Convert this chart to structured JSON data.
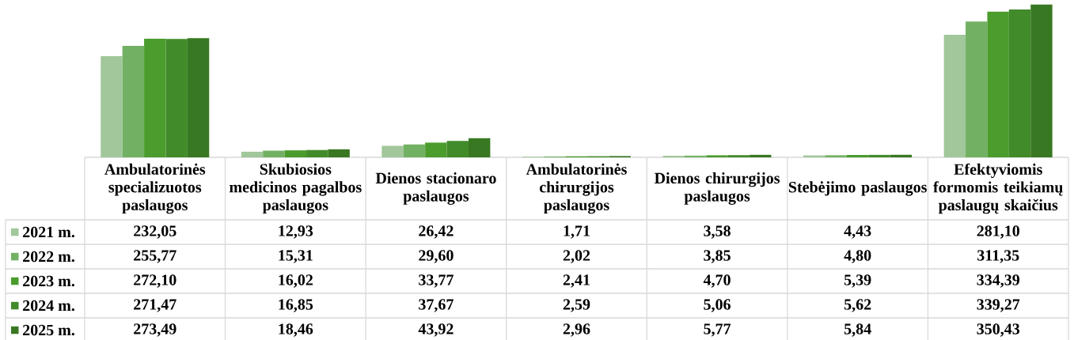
{
  "chart_data": {
    "type": "bar",
    "categories": [
      "Ambulatorinės specializuotos paslaugos",
      "Skubiosios medicinos pagalbos paslaugos",
      "Dienos stacionaro paslaugos",
      "Ambulatorinės chirurgijos paslaugos",
      "Dienos chirurgijos paslaugos",
      "Stebėjimo paslaugos",
      "Efektyviomis formomis teikiamų paslaugų skaičius"
    ],
    "series": [
      {
        "name": "2021 m.",
        "color": "#a1c79a",
        "values": [
          232.05,
          12.93,
          26.42,
          1.71,
          3.58,
          4.43,
          281.1
        ],
        "value_labels": [
          "232,05",
          "12,93",
          "26,42",
          "1,71",
          "3,58",
          "4,43",
          "281,10"
        ]
      },
      {
        "name": "2022 m.",
        "color": "#72b163",
        "values": [
          255.77,
          15.31,
          29.6,
          2.02,
          3.85,
          4.8,
          311.35
        ],
        "value_labels": [
          "255,77",
          "15,31",
          "29,60",
          "2,02",
          "3,85",
          "4,80",
          "311,35"
        ]
      },
      {
        "name": "2023 m.",
        "color": "#4a9c2c",
        "values": [
          272.1,
          16.02,
          33.77,
          2.41,
          4.7,
          5.39,
          334.39
        ],
        "value_labels": [
          "272,10",
          "16,02",
          "33,77",
          "2,41",
          "4,70",
          "5,39",
          "334,39"
        ]
      },
      {
        "name": "2024 m.",
        "color": "#428b2a",
        "values": [
          271.47,
          16.85,
          37.67,
          2.59,
          5.06,
          5.62,
          339.27
        ],
        "value_labels": [
          "271,47",
          "16,85",
          "37,67",
          "2,59",
          "5,06",
          "5,62",
          "339,27"
        ]
      },
      {
        "name": "2025 m.",
        "color": "#387822",
        "values": [
          273.49,
          18.46,
          43.92,
          2.96,
          5.77,
          5.84,
          350.43
        ],
        "value_labels": [
          "273,49",
          "18,46",
          "43,92",
          "2,96",
          "5,77",
          "5,84",
          "350,43"
        ]
      }
    ],
    "legend": "bottom left"
  }
}
